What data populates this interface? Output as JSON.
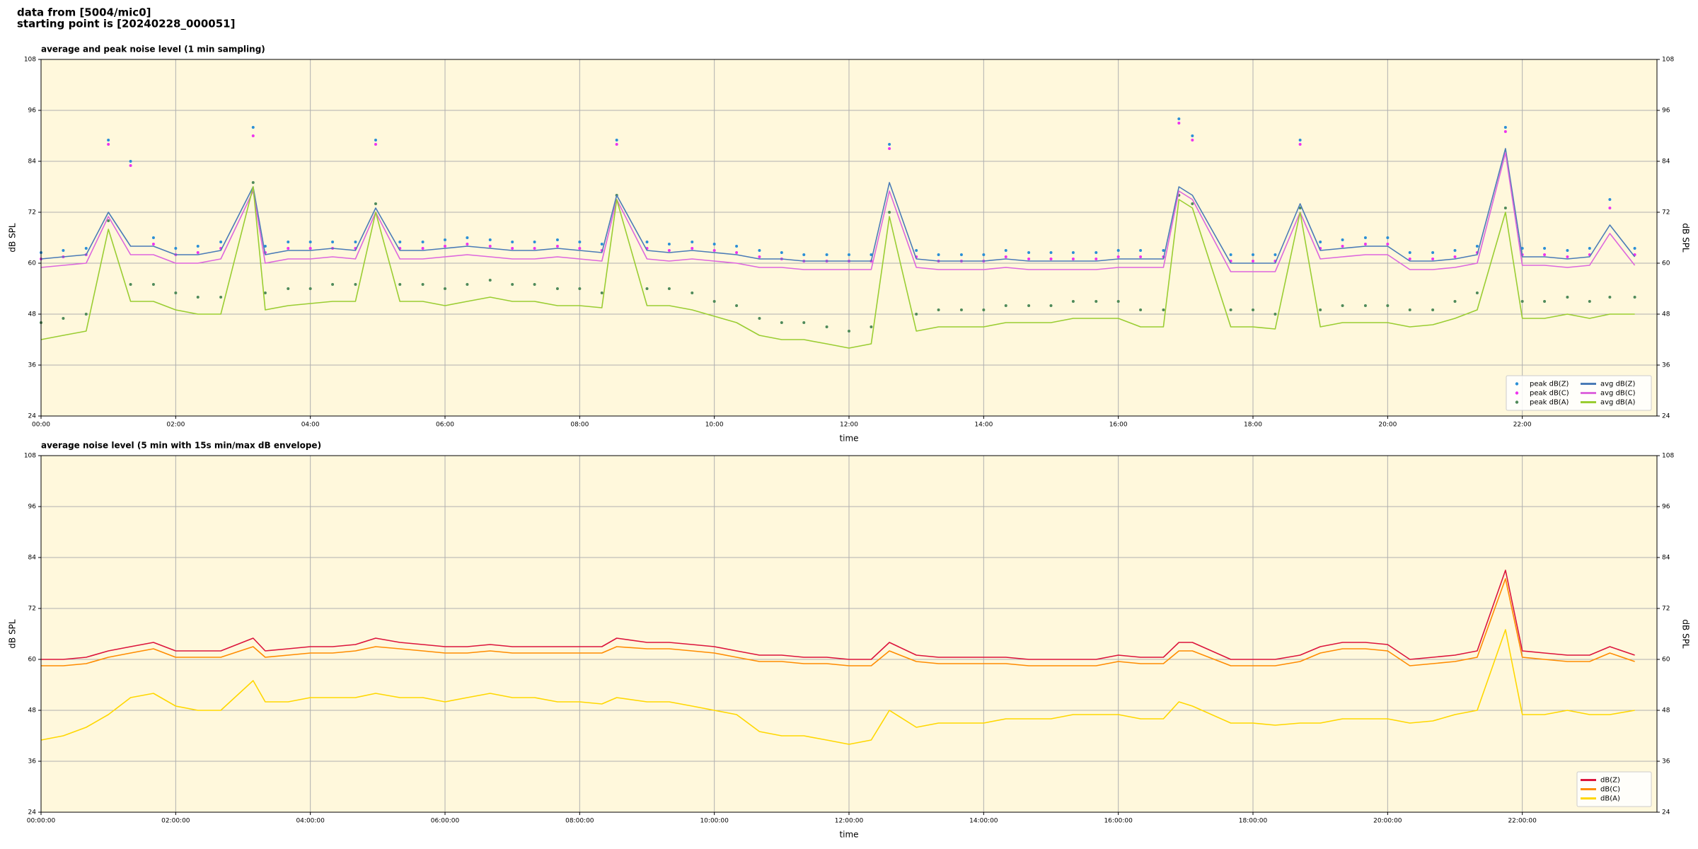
{
  "header": {
    "line1": "data from [5004/mic0]",
    "line2": "starting point is [20240228_000051]"
  },
  "chart_data": [
    {
      "type": "line",
      "title": "average and peak noise level (1 min sampling)",
      "xlabel": "time",
      "ylabel": "dB SPL",
      "x": [
        0,
        0.33,
        0.67,
        1,
        1.33,
        1.67,
        2,
        2.33,
        2.67,
        3.15,
        3.33,
        3.67,
        4,
        4.33,
        4.67,
        4.97,
        5.33,
        5.67,
        6,
        6.33,
        6.67,
        7,
        7.33,
        7.67,
        8,
        8.33,
        8.55,
        9,
        9.33,
        9.67,
        10,
        10.33,
        10.67,
        11,
        11.33,
        11.67,
        12,
        12.33,
        12.6,
        13,
        13.33,
        13.67,
        14,
        14.33,
        14.67,
        15,
        15.33,
        15.67,
        16,
        16.33,
        16.67,
        16.9,
        17.1,
        17.67,
        18,
        18.33,
        18.7,
        19,
        19.33,
        19.67,
        20,
        20.33,
        20.67,
        21,
        21.33,
        21.75,
        22,
        22.33,
        22.67,
        23,
        23.3,
        23.67
      ],
      "xlim": [
        0,
        24
      ],
      "xticks": [
        {
          "value": 0,
          "label": "00:00"
        },
        {
          "value": 2,
          "label": "02:00"
        },
        {
          "value": 4,
          "label": "04:00"
        },
        {
          "value": 6,
          "label": "06:00"
        },
        {
          "value": 8,
          "label": "08:00"
        },
        {
          "value": 10,
          "label": "10:00"
        },
        {
          "value": 12,
          "label": "12:00"
        },
        {
          "value": 14,
          "label": "14:00"
        },
        {
          "value": 16,
          "label": "16:00"
        },
        {
          "value": 18,
          "label": "18:00"
        },
        {
          "value": 20,
          "label": "20:00"
        },
        {
          "value": 22,
          "label": "22:00"
        }
      ],
      "ylim": [
        24,
        108
      ],
      "yticks": [
        24,
        36,
        48,
        60,
        72,
        84,
        96,
        108
      ],
      "grid": true,
      "legend": "lower right",
      "legend_columns": 2,
      "series": [
        {
          "name": "peak dB(Z)",
          "kind": "scatter",
          "color": "#2b8fd6",
          "values": [
            62.5,
            63,
            63.5,
            89,
            84,
            66,
            63.5,
            64,
            65,
            92,
            64,
            65,
            65,
            65,
            65,
            89,
            65,
            65,
            65.5,
            66,
            65.5,
            65,
            65,
            65.5,
            65,
            64.5,
            89,
            65,
            64.5,
            65,
            64.5,
            64,
            63,
            62.5,
            62,
            62,
            62,
            62,
            88,
            63,
            62,
            62,
            62,
            63,
            62.5,
            62.5,
            62.5,
            62.5,
            63,
            63,
            63,
            94,
            90,
            62,
            62,
            62,
            89,
            65,
            65.5,
            66,
            66,
            62.5,
            62.5,
            63,
            64,
            92,
            63.5,
            63.5,
            63,
            63.5,
            75,
            63.5
          ]
        },
        {
          "name": "peak dB(C)",
          "kind": "scatter",
          "color": "#ee33ee",
          "values": [
            61,
            61.5,
            62,
            88,
            83,
            64.5,
            62,
            62.5,
            63.5,
            90,
            62.5,
            63.5,
            63.5,
            63.5,
            63.5,
            88,
            63.5,
            63.5,
            64,
            64.5,
            64,
            63.5,
            63.5,
            64,
            63.5,
            63,
            88,
            63.5,
            63,
            63.5,
            63,
            62.5,
            61.5,
            61,
            60.5,
            60.5,
            60.5,
            60.5,
            87,
            61.5,
            60.5,
            60.5,
            60.5,
            61.5,
            61,
            61,
            61,
            61,
            61.5,
            61.5,
            61.5,
            93,
            89,
            60.5,
            60.5,
            60.5,
            88,
            63.5,
            64,
            64.5,
            64.5,
            61,
            61,
            61.5,
            62.5,
            91,
            62,
            62,
            61.5,
            62,
            73,
            62
          ]
        },
        {
          "name": "peak dB(A)",
          "kind": "scatter",
          "color": "#4f8a5a",
          "values": [
            46,
            47,
            48,
            70,
            55,
            55,
            53,
            52,
            52,
            79,
            53,
            54,
            54,
            55,
            55,
            74,
            55,
            55,
            54,
            55,
            56,
            55,
            55,
            54,
            54,
            53,
            76,
            54,
            54,
            53,
            51,
            50,
            47,
            46,
            46,
            45,
            44,
            45,
            72,
            48,
            49,
            49,
            49,
            50,
            50,
            50,
            51,
            51,
            51,
            49,
            49,
            76,
            74,
            49,
            49,
            48,
            73,
            49,
            50,
            50,
            50,
            49,
            49,
            51,
            53,
            73,
            51,
            51,
            52,
            51,
            52,
            52
          ]
        },
        {
          "name": "avg dB(Z)",
          "kind": "line",
          "color": "#4a7bb7",
          "values": [
            61,
            61.5,
            62,
            72,
            64,
            64,
            62,
            62,
            63,
            78,
            62,
            63,
            63,
            63.5,
            63,
            73,
            63,
            63,
            63.5,
            64,
            63.5,
            63,
            63,
            63.5,
            63,
            62.5,
            76,
            63,
            62.5,
            63,
            62.5,
            62,
            61,
            61,
            60.5,
            60.5,
            60.5,
            60.5,
            79,
            61,
            60.5,
            60.5,
            60.5,
            61,
            60.5,
            60.5,
            60.5,
            60.5,
            61,
            61,
            61,
            78,
            76,
            60,
            60,
            60,
            74,
            63,
            63.5,
            64,
            64,
            60.5,
            60.5,
            61,
            62,
            87,
            61.5,
            61.5,
            61,
            61.5,
            69,
            61.5
          ]
        },
        {
          "name": "avg dB(C)",
          "kind": "line",
          "color": "#dd66dd",
          "values": [
            59,
            59.5,
            60,
            71,
            62,
            62,
            60,
            60,
            61,
            77,
            60,
            61,
            61,
            61.5,
            61,
            72,
            61,
            61,
            61.5,
            62,
            61.5,
            61,
            61,
            61.5,
            61,
            60.5,
            75,
            61,
            60.5,
            61,
            60.5,
            60,
            59,
            59,
            58.5,
            58.5,
            58.5,
            58.5,
            77,
            59,
            58.5,
            58.5,
            58.5,
            59,
            58.5,
            58.5,
            58.5,
            58.5,
            59,
            59,
            59,
            77,
            75,
            58,
            58,
            58,
            72,
            61,
            61.5,
            62,
            62,
            58.5,
            58.5,
            59,
            60,
            86,
            59.5,
            59.5,
            59,
            59.5,
            67,
            59.5
          ]
        },
        {
          "name": "avg dB(A)",
          "kind": "line",
          "color": "#9acd32",
          "values": [
            42,
            43,
            44,
            68,
            51,
            51,
            49,
            48,
            48,
            78,
            49,
            50,
            50.5,
            51,
            51,
            72,
            51,
            51,
            50,
            51,
            52,
            51,
            51,
            50,
            50,
            49.5,
            75,
            50,
            50,
            49,
            47.5,
            46,
            43,
            42,
            42,
            41,
            40,
            41,
            71,
            44,
            45,
            45,
            45,
            46,
            46,
            46,
            47,
            47,
            47,
            45,
            45,
            75,
            73,
            45,
            45,
            44.5,
            72,
            45,
            46,
            46,
            46,
            45,
            45.5,
            47,
            49,
            72,
            47,
            47,
            48,
            47,
            48,
            48
          ]
        }
      ]
    },
    {
      "type": "line",
      "title": "average noise level (5 min with 15s min/max dB envelope)",
      "xlabel": "time",
      "ylabel": "dB SPL",
      "x": [
        0,
        0.33,
        0.67,
        1,
        1.33,
        1.67,
        2,
        2.33,
        2.67,
        3.15,
        3.33,
        3.67,
        4,
        4.33,
        4.67,
        4.97,
        5.33,
        5.67,
        6,
        6.33,
        6.67,
        7,
        7.33,
        7.67,
        8,
        8.33,
        8.55,
        9,
        9.33,
        9.67,
        10,
        10.33,
        10.67,
        11,
        11.33,
        11.67,
        12,
        12.33,
        12.6,
        13,
        13.33,
        13.67,
        14,
        14.33,
        14.67,
        15,
        15.33,
        15.67,
        16,
        16.33,
        16.67,
        16.9,
        17.1,
        17.67,
        18,
        18.33,
        18.7,
        19,
        19.33,
        19.67,
        20,
        20.33,
        20.67,
        21,
        21.33,
        21.75,
        22,
        22.33,
        22.67,
        23,
        23.3,
        23.67
      ],
      "xlim": [
        0,
        24
      ],
      "xticks": [
        {
          "value": 0,
          "label": "00:00:00"
        },
        {
          "value": 2,
          "label": "02:00:00"
        },
        {
          "value": 4,
          "label": "04:00:00"
        },
        {
          "value": 6,
          "label": "06:00:00"
        },
        {
          "value": 8,
          "label": "08:00:00"
        },
        {
          "value": 10,
          "label": "10:00:00"
        },
        {
          "value": 12,
          "label": "12:00:00"
        },
        {
          "value": 14,
          "label": "14:00:00"
        },
        {
          "value": 16,
          "label": "16:00:00"
        },
        {
          "value": 18,
          "label": "18:00:00"
        },
        {
          "value": 20,
          "label": "20:00:00"
        },
        {
          "value": 22,
          "label": "22:00:00"
        }
      ],
      "ylim": [
        24,
        108
      ],
      "yticks": [
        24,
        36,
        48,
        60,
        72,
        84,
        96,
        108
      ],
      "grid": true,
      "legend": "lower right",
      "legend_columns": 1,
      "series": [
        {
          "name": "dB(Z)",
          "kind": "line",
          "color": "#dc143c",
          "values": [
            60,
            60,
            60.5,
            62,
            63,
            64,
            62,
            62,
            62,
            65,
            62,
            62.5,
            63,
            63,
            63.5,
            65,
            64,
            63.5,
            63,
            63,
            63.5,
            63,
            63,
            63,
            63,
            63,
            65,
            64,
            64,
            63.5,
            63,
            62,
            61,
            61,
            60.5,
            60.5,
            60,
            60,
            64,
            61,
            60.5,
            60.5,
            60.5,
            60.5,
            60,
            60,
            60,
            60,
            61,
            60.5,
            60.5,
            64,
            64,
            60,
            60,
            60,
            61,
            63,
            64,
            64,
            63.5,
            60,
            60.5,
            61,
            62,
            81,
            62,
            61.5,
            61,
            61,
            63,
            61
          ]
        },
        {
          "name": "dB(C)",
          "kind": "line",
          "color": "#ff8c00",
          "values": [
            58.5,
            58.5,
            59,
            60.5,
            61.5,
            62.5,
            60.5,
            60.5,
            60.5,
            63,
            60.5,
            61,
            61.5,
            61.5,
            62,
            63,
            62.5,
            62,
            61.5,
            61.5,
            62,
            61.5,
            61.5,
            61.5,
            61.5,
            61.5,
            63,
            62.5,
            62.5,
            62,
            61.5,
            60.5,
            59.5,
            59.5,
            59,
            59,
            58.5,
            58.5,
            62,
            59.5,
            59,
            59,
            59,
            59,
            58.5,
            58.5,
            58.5,
            58.5,
            59.5,
            59,
            59,
            62,
            62,
            58.5,
            58.5,
            58.5,
            59.5,
            61.5,
            62.5,
            62.5,
            62,
            58.5,
            59,
            59.5,
            60.5,
            79,
            60.5,
            60,
            59.5,
            59.5,
            61.5,
            59.5
          ]
        },
        {
          "name": "dB(A)",
          "kind": "line",
          "color": "#ffd700",
          "values": [
            41,
            42,
            44,
            47,
            51,
            52,
            49,
            48,
            48,
            55,
            50,
            50,
            51,
            51,
            51,
            52,
            51,
            51,
            50,
            51,
            52,
            51,
            51,
            50,
            50,
            49.5,
            51,
            50,
            50,
            49,
            48,
            47,
            43,
            42,
            42,
            41,
            40,
            41,
            48,
            44,
            45,
            45,
            45,
            46,
            46,
            46,
            47,
            47,
            47,
            46,
            46,
            50,
            49,
            45,
            45,
            44.5,
            45,
            45,
            46,
            46,
            46,
            45,
            45.5,
            47,
            48,
            67,
            47,
            47,
            48,
            47,
            47,
            48
          ]
        }
      ]
    }
  ]
}
